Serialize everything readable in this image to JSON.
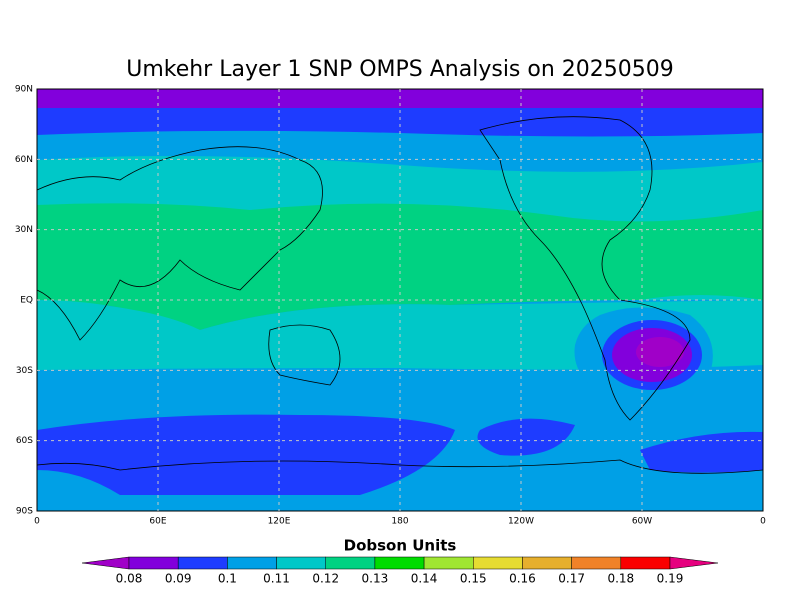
{
  "map": {
    "title": "Umkehr Layer 1 SNP OMPS Analysis on 20250509",
    "lat_ticks": [
      {
        "value": 90,
        "label": "90N"
      },
      {
        "value": 60,
        "label": "60N"
      },
      {
        "value": 30,
        "label": "30N"
      },
      {
        "value": 0,
        "label": "EQ"
      },
      {
        "value": -30,
        "label": "30S"
      },
      {
        "value": -60,
        "label": "60S"
      },
      {
        "value": -90,
        "label": "90S"
      }
    ],
    "lon_ticks": [
      {
        "value": 0,
        "label": "0"
      },
      {
        "value": 60,
        "label": "60E"
      },
      {
        "value": 120,
        "label": "120E"
      },
      {
        "value": 180,
        "label": "180"
      },
      {
        "value": 240,
        "label": "120W"
      },
      {
        "value": 300,
        "label": "60W"
      },
      {
        "value": 360,
        "label": "0"
      }
    ],
    "colorbar": {
      "title": "Dobson Units",
      "levels": [
        0.08,
        0.09,
        0.1,
        0.11,
        0.12,
        0.13,
        0.14,
        0.15,
        0.16,
        0.17,
        0.18,
        0.19
      ],
      "colors": [
        "#a000c8",
        "#8200dc",
        "#1e3cff",
        "#00a0e6",
        "#00c8c8",
        "#00d282",
        "#00dc00",
        "#a0e632",
        "#e6dc32",
        "#e6af2d",
        "#f08228",
        "#fa0000",
        "#e6007f"
      ]
    }
  }
}
